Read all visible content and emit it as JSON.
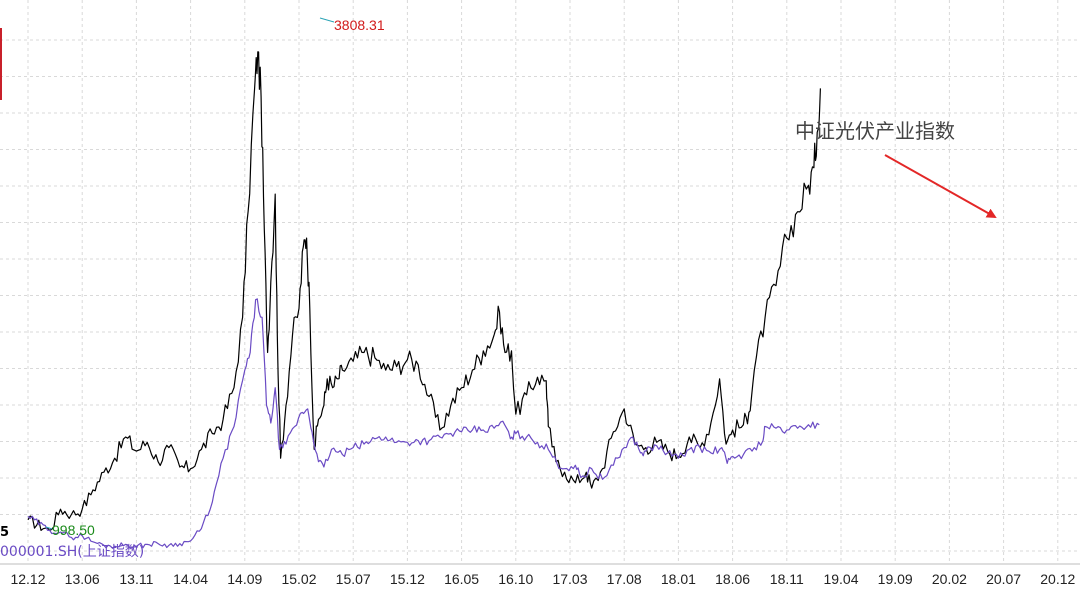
{
  "chart_data": {
    "type": "line",
    "x_ticks": [
      "12.12",
      "13.06",
      "13.11",
      "14.04",
      "14.09",
      "15.02",
      "15.07",
      "15.12",
      "16.05",
      "16.10",
      "17.03",
      "17.08",
      "18.01",
      "18.06",
      "18.11",
      "19.04",
      "19.09",
      "20.02",
      "20.07",
      "20.12"
    ],
    "ylim": [
      950,
      4000
    ],
    "grid": true,
    "series": [
      {
        "name": "",
        "color": "#000000",
        "points": [
          [
            0,
            1150
          ],
          [
            2,
            1090
          ],
          [
            3,
            1210
          ],
          [
            4,
            1180
          ],
          [
            5,
            1210
          ],
          [
            6,
            1320
          ],
          [
            7,
            1420
          ],
          [
            8,
            1500
          ],
          [
            9,
            1620
          ],
          [
            10,
            1540
          ],
          [
            11,
            1590
          ],
          [
            12,
            1480
          ],
          [
            13,
            1560
          ],
          [
            14,
            1450
          ],
          [
            15,
            1440
          ],
          [
            16,
            1550
          ],
          [
            17,
            1640
          ],
          [
            18,
            1720
          ],
          [
            19,
            1900
          ],
          [
            19.8,
            2300
          ],
          [
            20.3,
            2900
          ],
          [
            20.9,
            3600
          ],
          [
            21.2,
            3808.31
          ],
          [
            21.5,
            3550
          ],
          [
            21.8,
            2800
          ],
          [
            22.1,
            2100
          ],
          [
            22.4,
            2500
          ],
          [
            22.8,
            3000
          ],
          [
            23.0,
            2200
          ],
          [
            23.3,
            1500
          ],
          [
            23.8,
            1800
          ],
          [
            24.4,
            2200
          ],
          [
            25,
            2350
          ],
          [
            25.4,
            2700
          ],
          [
            25.7,
            2750
          ],
          [
            26,
            2350
          ],
          [
            26.4,
            1550
          ],
          [
            26.8,
            1720
          ],
          [
            27.3,
            1800
          ],
          [
            27.6,
            1950
          ],
          [
            28.1,
            1900
          ],
          [
            28.6,
            1950
          ],
          [
            29,
            2000
          ],
          [
            30,
            2050
          ],
          [
            31,
            2100
          ],
          [
            32,
            2070
          ],
          [
            33,
            2000
          ],
          [
            34,
            2020
          ],
          [
            35,
            2060
          ],
          [
            36,
            2030
          ],
          [
            37,
            1850
          ],
          [
            38,
            1660
          ],
          [
            39,
            1800
          ],
          [
            40,
            1900
          ],
          [
            41,
            2000
          ],
          [
            42,
            2110
          ],
          [
            43,
            2200
          ],
          [
            43.5,
            2330
          ],
          [
            44,
            2100
          ],
          [
            44.6,
            2110
          ],
          [
            45,
            1750
          ],
          [
            46,
            1860
          ],
          [
            47,
            1960
          ],
          [
            47.8,
            1940
          ],
          [
            48,
            1680
          ],
          [
            48.7,
            1480
          ],
          [
            49.5,
            1420
          ],
          [
            50.5,
            1360
          ],
          [
            51.5,
            1420
          ],
          [
            52,
            1330
          ],
          [
            53,
            1440
          ],
          [
            54,
            1650
          ],
          [
            55,
            1780
          ],
          [
            56,
            1580
          ],
          [
            57,
            1560
          ],
          [
            58,
            1590
          ],
          [
            59,
            1540
          ],
          [
            60,
            1510
          ],
          [
            61,
            1620
          ],
          [
            62,
            1560
          ],
          [
            63,
            1700
          ],
          [
            63.8,
            1950
          ],
          [
            64.4,
            1580
          ],
          [
            65,
            1660
          ],
          [
            66,
            1690
          ],
          [
            66.5,
            1760
          ],
          [
            67,
            2000
          ],
          [
            68,
            2300
          ],
          [
            69,
            2480
          ],
          [
            70,
            2750
          ],
          [
            71,
            2900
          ],
          [
            72,
            3050
          ],
          [
            72.5,
            3150
          ],
          [
            72.8,
            3350
          ],
          [
            73.1,
            3600
          ]
        ]
      },
      {
        "name": "000001.SH(上证指数)",
        "color": "#6a4bc4",
        "points": [
          [
            0,
            1170
          ],
          [
            2,
            1090
          ],
          [
            3,
            1080
          ],
          [
            4,
            1050
          ],
          [
            5,
            1060
          ],
          [
            6,
            1025
          ],
          [
            7,
            1005
          ],
          [
            8,
            1000
          ],
          [
            9,
            1010
          ],
          [
            10,
            998.5
          ],
          [
            11,
            1010
          ],
          [
            12,
            1015
          ],
          [
            13,
            1005
          ],
          [
            14,
            1015
          ],
          [
            15,
            1030
          ],
          [
            16,
            1100
          ],
          [
            17,
            1250
          ],
          [
            18,
            1500
          ],
          [
            19,
            1680
          ],
          [
            20,
            2000
          ],
          [
            20.5,
            2100
          ],
          [
            21,
            2400
          ],
          [
            21.6,
            2300
          ],
          [
            22,
            1800
          ],
          [
            22.4,
            1700
          ],
          [
            22.8,
            1900
          ],
          [
            23.2,
            1550
          ],
          [
            23.8,
            1580
          ],
          [
            24.6,
            1680
          ],
          [
            25.3,
            1760
          ],
          [
            25.8,
            1780
          ],
          [
            26.2,
            1650
          ],
          [
            26.8,
            1480
          ],
          [
            27.3,
            1450
          ],
          [
            28,
            1550
          ],
          [
            29,
            1520
          ],
          [
            30,
            1560
          ],
          [
            31,
            1580
          ],
          [
            32,
            1610
          ],
          [
            33,
            1620
          ],
          [
            34,
            1590
          ],
          [
            35,
            1590
          ],
          [
            36,
            1600
          ],
          [
            37,
            1600
          ],
          [
            38,
            1620
          ],
          [
            39,
            1640
          ],
          [
            40,
            1650
          ],
          [
            41,
            1660
          ],
          [
            42,
            1660
          ],
          [
            43,
            1670
          ],
          [
            43.8,
            1710
          ],
          [
            44.5,
            1610
          ],
          [
            45,
            1640
          ],
          [
            46,
            1620
          ],
          [
            47,
            1590
          ],
          [
            48,
            1550
          ],
          [
            48.8,
            1470
          ],
          [
            49.5,
            1440
          ],
          [
            50.5,
            1460
          ],
          [
            51,
            1390
          ],
          [
            52,
            1440
          ],
          [
            53,
            1380
          ],
          [
            54,
            1460
          ],
          [
            55,
            1560
          ],
          [
            55.8,
            1620
          ],
          [
            56.5,
            1530
          ],
          [
            57,
            1540
          ],
          [
            58,
            1570
          ],
          [
            59,
            1530
          ],
          [
            60,
            1500
          ],
          [
            61,
            1550
          ],
          [
            62,
            1560
          ],
          [
            63,
            1530
          ],
          [
            64,
            1560
          ],
          [
            64.5,
            1470
          ],
          [
            65,
            1510
          ],
          [
            66,
            1520
          ],
          [
            67,
            1560
          ],
          [
            67.8,
            1600
          ],
          [
            68,
            1680
          ],
          [
            69,
            1670
          ],
          [
            70,
            1660
          ],
          [
            71,
            1670
          ],
          [
            72,
            1690
          ],
          [
            73,
            1690
          ]
        ]
      }
    ],
    "labels": {
      "peak_value": "3808.31",
      "low_value": "998.50",
      "series2_label": "000001.SH(上证指数)",
      "annotation": "中证光伏产业指数",
      "left_edge_mark": "5"
    }
  },
  "colors": {
    "grid": "#d9d9d9",
    "peak_label": "#d11a1a",
    "low_label": "#1a8a1a",
    "series2_label": "#6a4bc4",
    "arrow": "#e32727",
    "annotation_text": "#444444",
    "left_bar": "#c8202a"
  }
}
